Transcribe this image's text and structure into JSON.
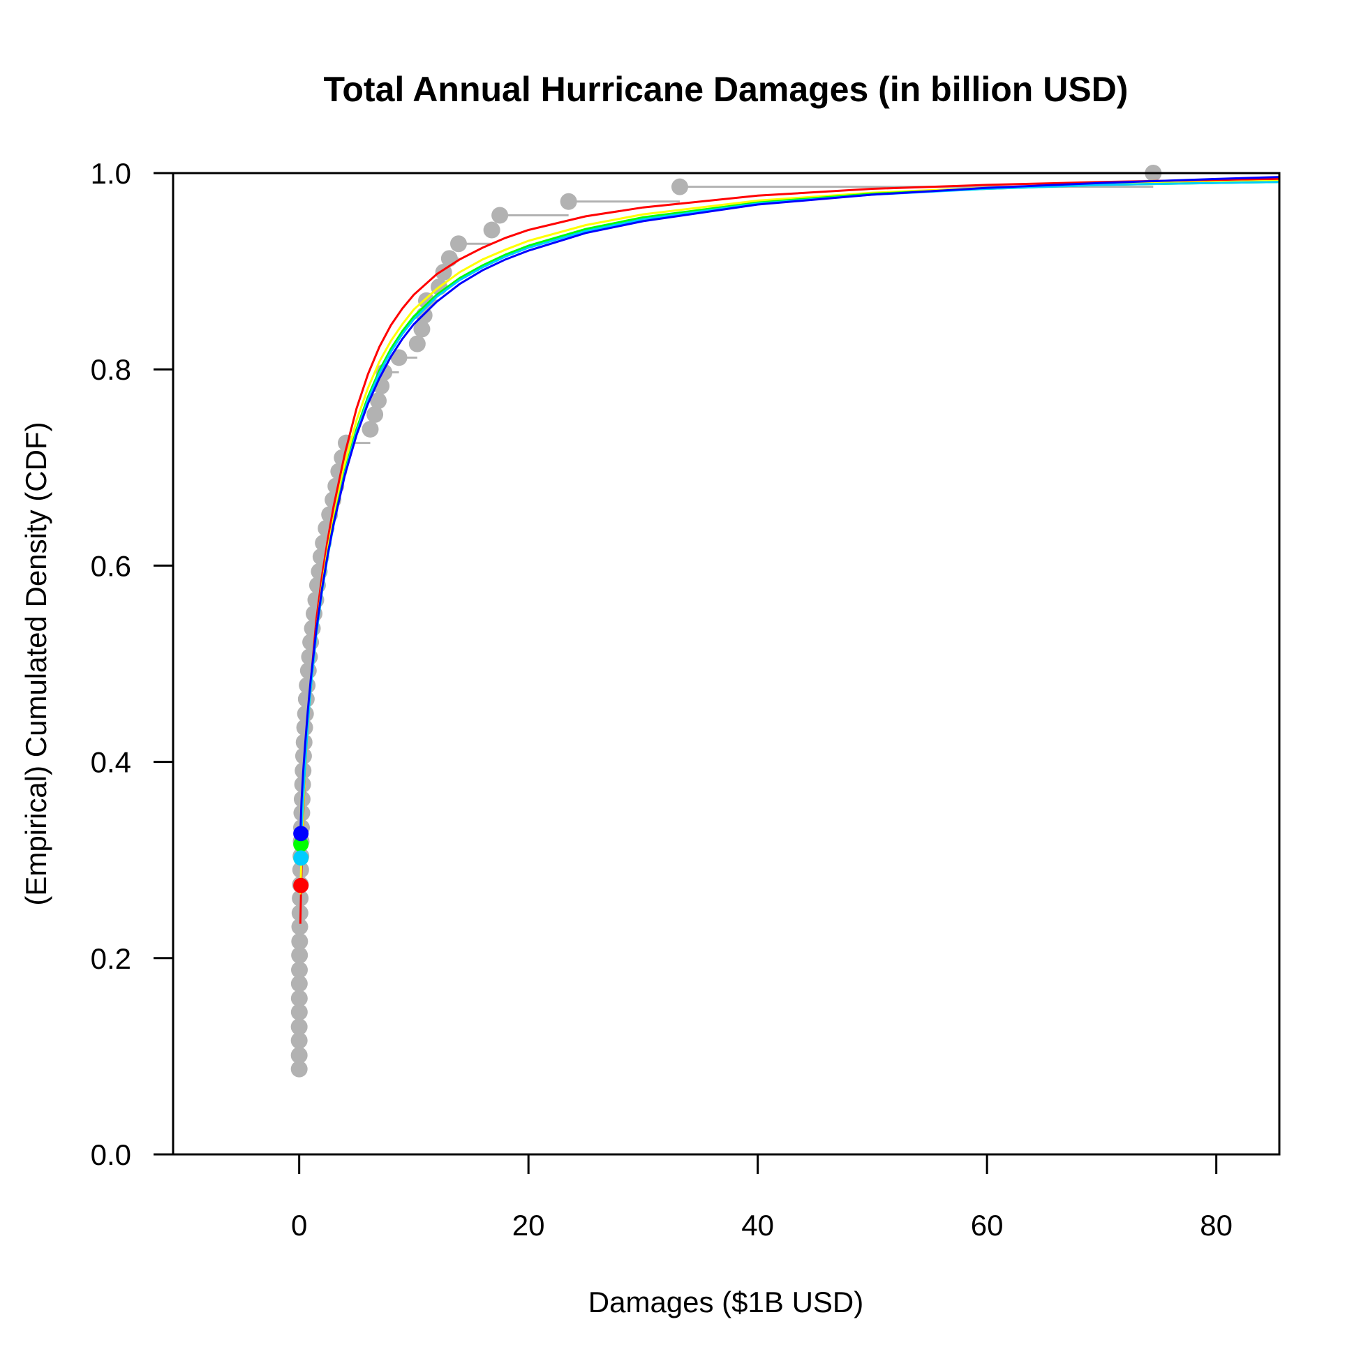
{
  "chart_data": {
    "type": "scatter",
    "title": "Total Annual Hurricane Damages (in billion USD)",
    "xlabel": "Damages ($1B USD)",
    "ylabel": "(Empirical) Cumulated Density (CDF)",
    "xlim": [
      -11,
      85.5
    ],
    "ylim": [
      0,
      1
    ],
    "xticks": [
      0,
      20,
      40,
      60,
      80
    ],
    "xtick_labels": [
      "0",
      "20",
      "40",
      "60",
      "80"
    ],
    "yticks": [
      0,
      0.2,
      0.4,
      0.6,
      0.8,
      1.0
    ],
    "ytick_labels": [
      "0.0",
      "0.2",
      "0.4",
      "0.6",
      "0.8",
      "1.0"
    ],
    "grid": false,
    "reference_lines": [
      0,
      1
    ],
    "colors": {
      "ecdf": "#b2b2b2",
      "curves": [
        "#ff0000",
        "#ffff00",
        "#00ff00",
        "#00ccff",
        "#0000ff"
      ],
      "axis": "#000000"
    },
    "ecdf_points": [
      [
        0.0,
        0.087
      ],
      [
        0.0,
        0.101
      ],
      [
        0.0,
        0.116
      ],
      [
        0.0,
        0.13
      ],
      [
        0.01,
        0.145
      ],
      [
        0.01,
        0.159
      ],
      [
        0.01,
        0.174
      ],
      [
        0.02,
        0.188
      ],
      [
        0.03,
        0.203
      ],
      [
        0.04,
        0.217
      ],
      [
        0.05,
        0.232
      ],
      [
        0.07,
        0.246
      ],
      [
        0.09,
        0.261
      ],
      [
        0.11,
        0.275
      ],
      [
        0.13,
        0.29
      ],
      [
        0.15,
        0.304
      ],
      [
        0.17,
        0.319
      ],
      [
        0.2,
        0.333
      ],
      [
        0.23,
        0.348
      ],
      [
        0.26,
        0.362
      ],
      [
        0.3,
        0.377
      ],
      [
        0.34,
        0.391
      ],
      [
        0.38,
        0.406
      ],
      [
        0.43,
        0.42
      ],
      [
        0.48,
        0.435
      ],
      [
        0.55,
        0.449
      ],
      [
        0.62,
        0.464
      ],
      [
        0.7,
        0.478
      ],
      [
        0.8,
        0.493
      ],
      [
        0.9,
        0.507
      ],
      [
        1.0,
        0.522
      ],
      [
        1.15,
        0.536
      ],
      [
        1.3,
        0.551
      ],
      [
        1.45,
        0.565
      ],
      [
        1.6,
        0.58
      ],
      [
        1.75,
        0.594
      ],
      [
        1.9,
        0.609
      ],
      [
        2.1,
        0.623
      ],
      [
        2.35,
        0.638
      ],
      [
        2.65,
        0.652
      ],
      [
        2.95,
        0.667
      ],
      [
        3.2,
        0.681
      ],
      [
        3.45,
        0.696
      ],
      [
        3.75,
        0.71
      ],
      [
        4.1,
        0.725
      ],
      [
        6.2,
        0.739
      ],
      [
        6.6,
        0.754
      ],
      [
        6.9,
        0.768
      ],
      [
        7.15,
        0.783
      ],
      [
        7.4,
        0.797
      ],
      [
        8.7,
        0.812
      ],
      [
        10.3,
        0.826
      ],
      [
        10.7,
        0.841
      ],
      [
        10.9,
        0.855
      ],
      [
        11.1,
        0.87
      ],
      [
        12.2,
        0.884
      ],
      [
        12.6,
        0.899
      ],
      [
        13.1,
        0.913
      ],
      [
        13.9,
        0.928
      ],
      [
        16.8,
        0.942
      ],
      [
        17.5,
        0.957
      ],
      [
        23.5,
        0.971
      ],
      [
        33.2,
        0.986
      ],
      [
        74.5,
        1.0
      ]
    ],
    "series": [
      {
        "values": [
          [
            0.1,
            0.235
          ],
          [
            0.2,
            0.29
          ],
          [
            0.35,
            0.345
          ],
          [
            0.5,
            0.39
          ],
          [
            0.75,
            0.44
          ],
          [
            1,
            0.48
          ],
          [
            1.5,
            0.545
          ],
          [
            2,
            0.59
          ],
          [
            2.5,
            0.627
          ],
          [
            3,
            0.66
          ],
          [
            4,
            0.715
          ],
          [
            5,
            0.76
          ],
          [
            6,
            0.795
          ],
          [
            7,
            0.823
          ],
          [
            8,
            0.845
          ],
          [
            9,
            0.862
          ],
          [
            10,
            0.876
          ],
          [
            12,
            0.897
          ],
          [
            14,
            0.912
          ],
          [
            16,
            0.924
          ],
          [
            18,
            0.934
          ],
          [
            20,
            0.942
          ],
          [
            25,
            0.956
          ],
          [
            30,
            0.965
          ],
          [
            40,
            0.977
          ],
          [
            50,
            0.984
          ],
          [
            60,
            0.988
          ],
          [
            70,
            0.991
          ],
          [
            80,
            0.993
          ],
          [
            85.5,
            0.994
          ]
        ]
      },
      {
        "values": [
          [
            0.1,
            0.265
          ],
          [
            0.2,
            0.305
          ],
          [
            0.35,
            0.35
          ],
          [
            0.5,
            0.39
          ],
          [
            0.75,
            0.438
          ],
          [
            1,
            0.475
          ],
          [
            1.5,
            0.535
          ],
          [
            2,
            0.58
          ],
          [
            2.5,
            0.617
          ],
          [
            3,
            0.648
          ],
          [
            4,
            0.705
          ],
          [
            5,
            0.748
          ],
          [
            6,
            0.781
          ],
          [
            7,
            0.808
          ],
          [
            8,
            0.829
          ],
          [
            9,
            0.846
          ],
          [
            10,
            0.861
          ],
          [
            12,
            0.882
          ],
          [
            14,
            0.899
          ],
          [
            16,
            0.912
          ],
          [
            18,
            0.922
          ],
          [
            20,
            0.931
          ],
          [
            25,
            0.947
          ],
          [
            30,
            0.958
          ],
          [
            40,
            0.972
          ],
          [
            50,
            0.98
          ],
          [
            60,
            0.985
          ],
          [
            70,
            0.989
          ],
          [
            80,
            0.991
          ],
          [
            85.5,
            0.992
          ]
        ]
      },
      {
        "values": [
          [
            0.1,
            0.31
          ],
          [
            0.2,
            0.335
          ],
          [
            0.35,
            0.365
          ],
          [
            0.5,
            0.395
          ],
          [
            0.75,
            0.44
          ],
          [
            1,
            0.475
          ],
          [
            1.5,
            0.532
          ],
          [
            2,
            0.576
          ],
          [
            2.5,
            0.612
          ],
          [
            3,
            0.643
          ],
          [
            4,
            0.697
          ],
          [
            5,
            0.739
          ],
          [
            6,
            0.772
          ],
          [
            7,
            0.799
          ],
          [
            8,
            0.821
          ],
          [
            9,
            0.839
          ],
          [
            10,
            0.854
          ],
          [
            12,
            0.876
          ],
          [
            14,
            0.893
          ],
          [
            16,
            0.906
          ],
          [
            18,
            0.917
          ],
          [
            20,
            0.926
          ],
          [
            25,
            0.943
          ],
          [
            30,
            0.955
          ],
          [
            40,
            0.97
          ],
          [
            50,
            0.979
          ],
          [
            60,
            0.984
          ],
          [
            70,
            0.988
          ],
          [
            80,
            0.99
          ],
          [
            85.5,
            0.991
          ]
        ]
      },
      {
        "values": [
          [
            0.1,
            0.295
          ],
          [
            0.2,
            0.33
          ],
          [
            0.35,
            0.362
          ],
          [
            0.5,
            0.393
          ],
          [
            0.75,
            0.438
          ],
          [
            1,
            0.474
          ],
          [
            1.5,
            0.53
          ],
          [
            2,
            0.574
          ],
          [
            2.5,
            0.61
          ],
          [
            3,
            0.641
          ],
          [
            4,
            0.695
          ],
          [
            5,
            0.736
          ],
          [
            6,
            0.769
          ],
          [
            7,
            0.796
          ],
          [
            8,
            0.818
          ],
          [
            9,
            0.836
          ],
          [
            10,
            0.851
          ],
          [
            12,
            0.874
          ],
          [
            14,
            0.891
          ],
          [
            16,
            0.904
          ],
          [
            18,
            0.915
          ],
          [
            20,
            0.924
          ],
          [
            25,
            0.941
          ],
          [
            30,
            0.953
          ],
          [
            40,
            0.969
          ],
          [
            50,
            0.978
          ],
          [
            60,
            0.984
          ],
          [
            70,
            0.988
          ],
          [
            80,
            0.99
          ],
          [
            85.5,
            0.991
          ]
        ]
      },
      {
        "values": [
          [
            0.1,
            0.325
          ],
          [
            0.2,
            0.36
          ],
          [
            0.35,
            0.39
          ],
          [
            0.5,
            0.415
          ],
          [
            0.75,
            0.452
          ],
          [
            1,
            0.483
          ],
          [
            1.5,
            0.535
          ],
          [
            2,
            0.577
          ],
          [
            2.5,
            0.612
          ],
          [
            3,
            0.642
          ],
          [
            4,
            0.693
          ],
          [
            5,
            0.733
          ],
          [
            6,
            0.765
          ],
          [
            7,
            0.791
          ],
          [
            8,
            0.813
          ],
          [
            9,
            0.831
          ],
          [
            10,
            0.846
          ],
          [
            12,
            0.869
          ],
          [
            14,
            0.887
          ],
          [
            16,
            0.901
          ],
          [
            18,
            0.912
          ],
          [
            20,
            0.921
          ],
          [
            25,
            0.939
          ],
          [
            30,
            0.951
          ],
          [
            40,
            0.968
          ],
          [
            50,
            0.978
          ],
          [
            60,
            0.985
          ],
          [
            70,
            0.99
          ],
          [
            80,
            0.994
          ],
          [
            85.5,
            0.996
          ]
        ]
      }
    ],
    "start_markers": [
      [
        0.15,
        0.274
      ],
      [
        0.15,
        0.302
      ],
      [
        0.15,
        0.316
      ],
      [
        0.15,
        0.302
      ],
      [
        0.15,
        0.327
      ]
    ]
  }
}
